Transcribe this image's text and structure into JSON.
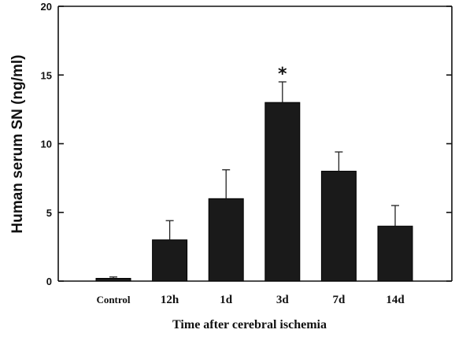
{
  "chart_data": {
    "type": "bar",
    "title": "",
    "xlabel": "Time after cerebral ischemia",
    "ylabel": "Human serum SN (ng/ml)",
    "categories": [
      "Control",
      "12h",
      "1d",
      "3d",
      "7d",
      "14d"
    ],
    "values": [
      0.2,
      3.0,
      6.0,
      13.0,
      8.0,
      4.0
    ],
    "errors": [
      0.1,
      1.4,
      2.1,
      1.5,
      1.4,
      1.5
    ],
    "ylim": [
      0,
      20
    ],
    "yticks": [
      "0",
      "5",
      "10",
      "15",
      "20"
    ],
    "bar_color": "#1a1a1a",
    "annotations": [
      {
        "category": "3d",
        "text": "*"
      }
    ],
    "grid": false
  }
}
